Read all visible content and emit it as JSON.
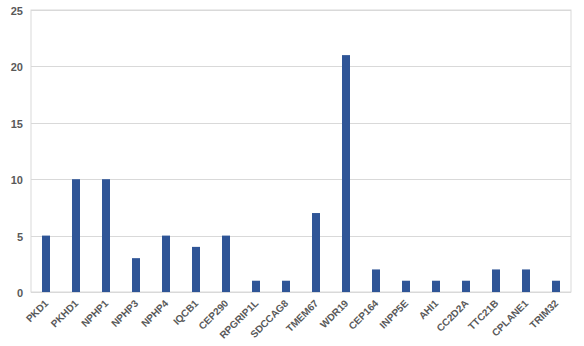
{
  "chart_data": {
    "type": "bar",
    "categories": [
      "PKD1",
      "PKHD1",
      "NPHP1",
      "NPHP3",
      "NPHP4",
      "IQCB1",
      "CEP290",
      "RPGRIP1L",
      "SDCCAG8",
      "TMEM67",
      "WDR19",
      "CEP164",
      "INPP5E",
      "AHI1",
      "CC2D2A",
      "TTC21B",
      "CPLANE1",
      "TRIM32"
    ],
    "values": [
      5,
      10,
      10,
      3,
      5,
      4,
      5,
      1,
      1,
      7,
      21,
      2,
      1,
      1,
      1,
      2,
      2,
      1
    ],
    "color": "#2f5597",
    "ylim": [
      0,
      25
    ],
    "yticks": [
      0,
      5,
      10,
      15,
      20,
      25
    ],
    "grid": true
  }
}
